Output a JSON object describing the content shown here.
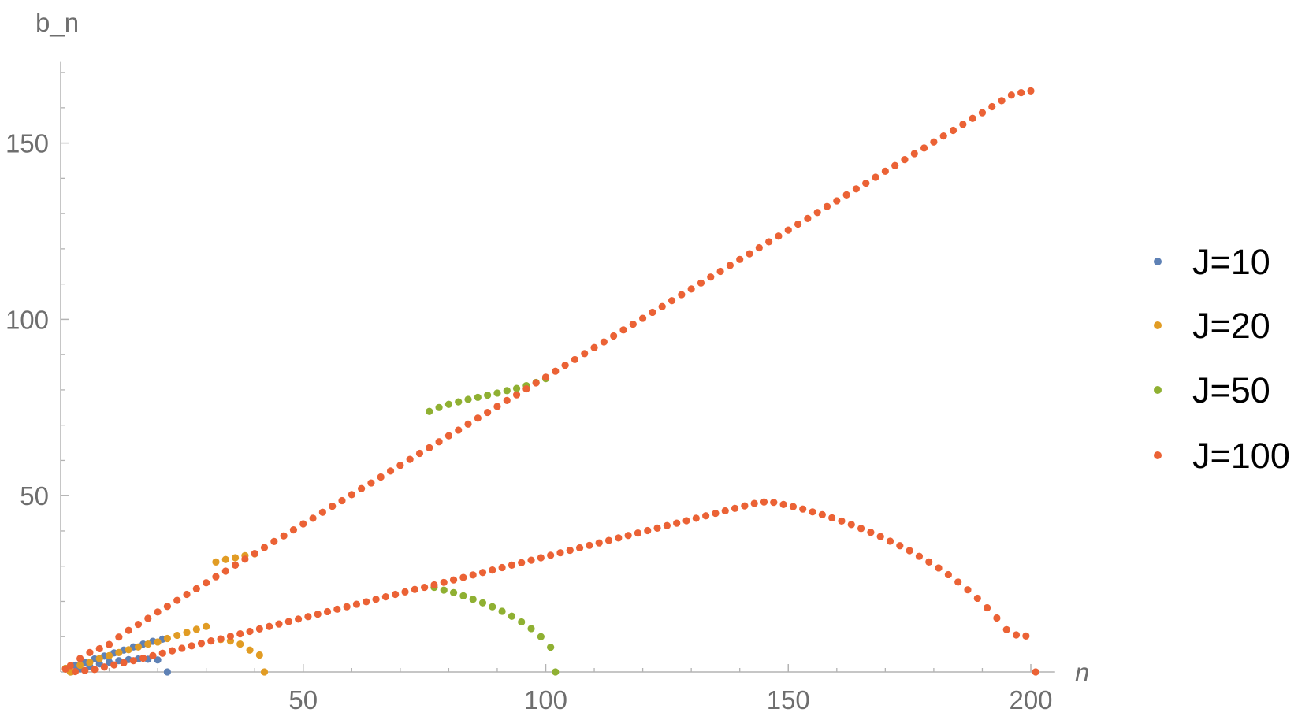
{
  "chart_data": {
    "type": "scatter",
    "xlabel": "n",
    "ylabel": "b_n",
    "xlim": [
      0,
      205
    ],
    "ylim": [
      0,
      173
    ],
    "x_ticks_major": [
      50,
      100,
      150,
      200
    ],
    "x_tick_labels": [
      "50",
      "100",
      "150",
      "200"
    ],
    "x_ticks_minor": [
      10,
      20,
      30,
      40,
      60,
      70,
      80,
      90,
      110,
      120,
      130,
      140,
      160,
      170,
      180,
      190
    ],
    "y_ticks_major": [
      50,
      100,
      150
    ],
    "y_tick_labels": [
      "50",
      "100",
      "150"
    ],
    "y_ticks_minor": [
      10,
      20,
      30,
      40,
      60,
      70,
      80,
      90,
      110,
      120,
      130,
      140,
      160,
      170
    ],
    "legend_position": "right",
    "grid": false,
    "series": [
      {
        "name": "J=10",
        "color": "#5e81b5",
        "points": [
          [
            1,
            1.0
          ],
          [
            2,
            0.0
          ],
          [
            3,
            1.9
          ],
          [
            4,
            0.9
          ],
          [
            5,
            2.8
          ],
          [
            6,
            1.6
          ],
          [
            7,
            3.7
          ],
          [
            8,
            2.3
          ],
          [
            9,
            4.5
          ],
          [
            10,
            2.8
          ],
          [
            11,
            5.4
          ],
          [
            12,
            3.2
          ],
          [
            13,
            6.2
          ],
          [
            14,
            3.5
          ],
          [
            15,
            7.1
          ],
          [
            16,
            3.7
          ],
          [
            17,
            7.9
          ],
          [
            18,
            3.6
          ],
          [
            19,
            8.7
          ],
          [
            20,
            3.4
          ],
          [
            21,
            9.3
          ],
          [
            22,
            0.0
          ]
        ]
      },
      {
        "name": "J=20",
        "color": "#e19c24",
        "points": [
          [
            1,
            1.0
          ],
          [
            2,
            0.0
          ],
          [
            4,
            1.9
          ],
          [
            6,
            2.7
          ],
          [
            8,
            3.8
          ],
          [
            10,
            4.6
          ],
          [
            12,
            5.5
          ],
          [
            14,
            6.3
          ],
          [
            16,
            7.1
          ],
          [
            18,
            7.9
          ],
          [
            20,
            8.5
          ],
          [
            22,
            9.5
          ],
          [
            24,
            10.4
          ],
          [
            26,
            11.2
          ],
          [
            28,
            12.1
          ],
          [
            30,
            12.9
          ],
          [
            32,
            31.2
          ],
          [
            33,
            9.2
          ],
          [
            34,
            31.9
          ],
          [
            35,
            8.8
          ],
          [
            36,
            32.4
          ],
          [
            37,
            7.9
          ],
          [
            38,
            33.0
          ],
          [
            39,
            6.2
          ],
          [
            40,
            33.5
          ],
          [
            41,
            4.8
          ],
          [
            42,
            0.0
          ]
        ]
      },
      {
        "name": "J=50",
        "color": "#8fb032",
        "points": [
          [
            76,
            73.9
          ],
          [
            77,
            24.0
          ],
          [
            78,
            75.0
          ],
          [
            79,
            23.2
          ],
          [
            80,
            75.9
          ],
          [
            81,
            22.5
          ],
          [
            82,
            76.6
          ],
          [
            83,
            21.6
          ],
          [
            84,
            77.3
          ],
          [
            85,
            20.6
          ],
          [
            86,
            77.9
          ],
          [
            87,
            19.6
          ],
          [
            88,
            78.5
          ],
          [
            89,
            18.5
          ],
          [
            90,
            79.1
          ],
          [
            91,
            17.2
          ],
          [
            92,
            79.8
          ],
          [
            93,
            15.8
          ],
          [
            94,
            80.4
          ],
          [
            95,
            14.2
          ],
          [
            96,
            81.2
          ],
          [
            97,
            12.3
          ],
          [
            98,
            82.1
          ],
          [
            99,
            10.0
          ],
          [
            100,
            83.2
          ],
          [
            101,
            7.0
          ],
          [
            102,
            0.0
          ]
        ]
      },
      {
        "name": "J=100",
        "color": "#eb6235",
        "points": [
          [
            1,
            0.8
          ],
          [
            2,
            1.8
          ],
          [
            3,
            0.1
          ],
          [
            4,
            3.8
          ],
          [
            5,
            0.4
          ],
          [
            6,
            5.5
          ],
          [
            7,
            0.7
          ],
          [
            8,
            6.6
          ],
          [
            9,
            1.4
          ],
          [
            10,
            7.8
          ],
          [
            11,
            2.0
          ],
          [
            12,
            9.9
          ],
          [
            13,
            2.6
          ],
          [
            14,
            11.8
          ],
          [
            15,
            3.2
          ],
          [
            16,
            13.5
          ],
          [
            17,
            3.9
          ],
          [
            18,
            15.2
          ],
          [
            19,
            4.6
          ],
          [
            20,
            17.0
          ],
          [
            21,
            5.3
          ],
          [
            22,
            18.6
          ],
          [
            23,
            6.0
          ],
          [
            24,
            20.3
          ],
          [
            25,
            6.7
          ],
          [
            26,
            22.0
          ],
          [
            27,
            7.4
          ],
          [
            28,
            23.6
          ],
          [
            29,
            8.1
          ],
          [
            30,
            25.3
          ],
          [
            31,
            8.8
          ],
          [
            32,
            27.0
          ],
          [
            33,
            9.4
          ],
          [
            34,
            28.6
          ],
          [
            35,
            10.1
          ],
          [
            36,
            30.3
          ],
          [
            37,
            10.8
          ],
          [
            38,
            32.0
          ],
          [
            39,
            11.5
          ],
          [
            40,
            33.6
          ],
          [
            41,
            12.2
          ],
          [
            42,
            35.3
          ],
          [
            43,
            12.9
          ],
          [
            44,
            37.0
          ],
          [
            45,
            13.6
          ],
          [
            46,
            38.6
          ],
          [
            47,
            14.3
          ],
          [
            48,
            40.3
          ],
          [
            49,
            15.0
          ],
          [
            50,
            42.0
          ],
          [
            51,
            15.7
          ],
          [
            52,
            43.6
          ],
          [
            53,
            16.4
          ],
          [
            54,
            45.3
          ],
          [
            55,
            17.1
          ],
          [
            56,
            47.0
          ],
          [
            57,
            17.8
          ],
          [
            58,
            48.6
          ],
          [
            59,
            18.5
          ],
          [
            60,
            50.3
          ],
          [
            61,
            19.2
          ],
          [
            62,
            52.0
          ],
          [
            63,
            19.9
          ],
          [
            64,
            53.6
          ],
          [
            65,
            20.6
          ],
          [
            66,
            55.3
          ],
          [
            67,
            21.3
          ],
          [
            68,
            57.0
          ],
          [
            69,
            22.0
          ],
          [
            70,
            58.6
          ],
          [
            71,
            22.7
          ],
          [
            72,
            60.3
          ],
          [
            73,
            23.4
          ],
          [
            74,
            62.0
          ],
          [
            75,
            24.0
          ],
          [
            76,
            63.6
          ],
          [
            77,
            24.7
          ],
          [
            78,
            65.3
          ],
          [
            79,
            25.4
          ],
          [
            80,
            67.0
          ],
          [
            81,
            26.1
          ],
          [
            82,
            68.6
          ],
          [
            83,
            26.8
          ],
          [
            84,
            70.3
          ],
          [
            85,
            27.5
          ],
          [
            86,
            72.0
          ],
          [
            87,
            28.2
          ],
          [
            88,
            73.6
          ],
          [
            89,
            28.9
          ],
          [
            90,
            75.3
          ],
          [
            91,
            29.6
          ],
          [
            92,
            77.0
          ],
          [
            93,
            30.3
          ],
          [
            94,
            78.6
          ],
          [
            95,
            31.0
          ],
          [
            96,
            80.3
          ],
          [
            97,
            31.7
          ],
          [
            98,
            82.0
          ],
          [
            99,
            32.4
          ],
          [
            100,
            83.6
          ],
          [
            101,
            33.1
          ],
          [
            102,
            85.3
          ],
          [
            103,
            33.8
          ],
          [
            104,
            87.0
          ],
          [
            105,
            34.5
          ],
          [
            106,
            88.6
          ],
          [
            107,
            35.2
          ],
          [
            108,
            90.3
          ],
          [
            109,
            35.9
          ],
          [
            110,
            92.0
          ],
          [
            111,
            36.6
          ],
          [
            112,
            93.6
          ],
          [
            113,
            37.3
          ],
          [
            114,
            95.3
          ],
          [
            115,
            38.0
          ],
          [
            116,
            97.0
          ],
          [
            117,
            38.7
          ],
          [
            118,
            98.6
          ],
          [
            119,
            39.4
          ],
          [
            120,
            100.3
          ],
          [
            121,
            40.1
          ],
          [
            122,
            102.0
          ],
          [
            123,
            40.8
          ],
          [
            124,
            103.6
          ],
          [
            125,
            41.5
          ],
          [
            126,
            105.3
          ],
          [
            127,
            42.2
          ],
          [
            128,
            107.0
          ],
          [
            129,
            42.9
          ],
          [
            130,
            108.6
          ],
          [
            131,
            43.6
          ],
          [
            132,
            110.3
          ],
          [
            133,
            44.3
          ],
          [
            134,
            112.0
          ],
          [
            135,
            45.0
          ],
          [
            136,
            113.6
          ],
          [
            137,
            45.7
          ],
          [
            138,
            115.3
          ],
          [
            139,
            46.4
          ],
          [
            140,
            117.0
          ],
          [
            141,
            47.1
          ],
          [
            142,
            118.6
          ],
          [
            143,
            47.8
          ],
          [
            144,
            120.3
          ],
          [
            145,
            48.2
          ],
          [
            146,
            122.0
          ],
          [
            147,
            48.1
          ],
          [
            148,
            123.6
          ],
          [
            149,
            47.5
          ],
          [
            150,
            125.3
          ],
          [
            151,
            46.9
          ],
          [
            152,
            127.0
          ],
          [
            153,
            46.2
          ],
          [
            154,
            128.6
          ],
          [
            155,
            45.4
          ],
          [
            156,
            130.3
          ],
          [
            157,
            44.6
          ],
          [
            158,
            132.0
          ],
          [
            159,
            43.7
          ],
          [
            160,
            133.6
          ],
          [
            161,
            42.8
          ],
          [
            162,
            135.3
          ],
          [
            163,
            41.8
          ],
          [
            164,
            137.0
          ],
          [
            165,
            40.7
          ],
          [
            166,
            138.6
          ],
          [
            167,
            39.6
          ],
          [
            168,
            140.3
          ],
          [
            169,
            38.4
          ],
          [
            170,
            142.0
          ],
          [
            171,
            37.1
          ],
          [
            172,
            143.6
          ],
          [
            173,
            35.8
          ],
          [
            174,
            145.3
          ],
          [
            175,
            34.4
          ],
          [
            176,
            147.0
          ],
          [
            177,
            32.8
          ],
          [
            178,
            148.6
          ],
          [
            179,
            31.2
          ],
          [
            180,
            150.3
          ],
          [
            181,
            29.5
          ],
          [
            182,
            152.0
          ],
          [
            183,
            27.6
          ],
          [
            184,
            153.6
          ],
          [
            185,
            25.5
          ],
          [
            186,
            155.3
          ],
          [
            187,
            23.3
          ],
          [
            188,
            157.0
          ],
          [
            189,
            20.9
          ],
          [
            190,
            158.6
          ],
          [
            191,
            18.2
          ],
          [
            192,
            160.3
          ],
          [
            193,
            15.3
          ],
          [
            194,
            162.0
          ],
          [
            195,
            12.0
          ],
          [
            196,
            163.6
          ],
          [
            197,
            10.5
          ],
          [
            198,
            164.3
          ],
          [
            199,
            10.2
          ],
          [
            200,
            164.8
          ],
          [
            201,
            0.0
          ]
        ]
      }
    ]
  }
}
